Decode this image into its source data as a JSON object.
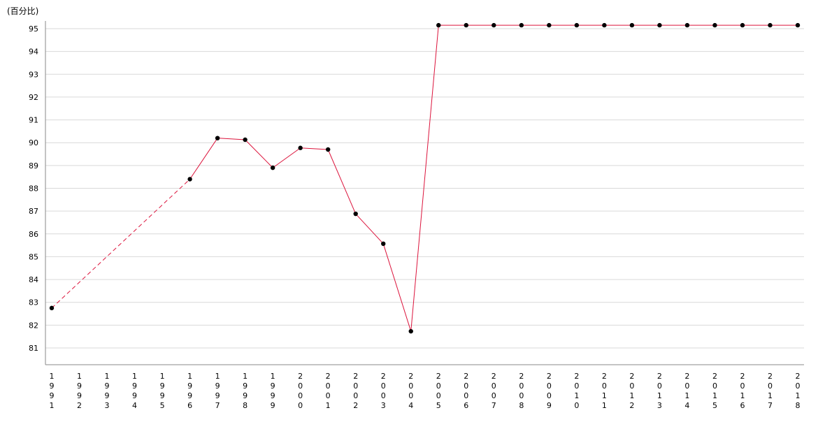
{
  "chart_data": {
    "type": "line",
    "title": "",
    "xlabel": "",
    "ylabel": "(百分比)",
    "ylim": [
      80.25,
      95.35
    ],
    "yticks": [
      81,
      82,
      83,
      84,
      85,
      86,
      87,
      88,
      89,
      90,
      91,
      92,
      93,
      94,
      95
    ],
    "grid": true,
    "legend": "none",
    "colors": {
      "line": "#dc143c",
      "marker": "#000000",
      "grid": "#d9d9d9",
      "axis": "#888888"
    },
    "x": [
      "1991",
      "1992",
      "1993",
      "1994",
      "1995",
      "1996",
      "1997",
      "1998",
      "1999",
      "2000",
      "2001",
      "2002",
      "2003",
      "2004",
      "2005",
      "2006",
      "2007",
      "2008",
      "2009",
      "2010",
      "2011",
      "2012",
      "2013",
      "2014",
      "2015",
      "2016",
      "2017",
      "2018"
    ],
    "series": [
      {
        "values": [
          82.75,
          null,
          null,
          null,
          null,
          88.4,
          90.2,
          90.13,
          88.9,
          89.77,
          89.7,
          86.88,
          85.57,
          81.73,
          95.15,
          95.15,
          95.15,
          95.15,
          95.15,
          95.15,
          95.15,
          95.15,
          95.15,
          95.15,
          95.15,
          95.15,
          95.15,
          95.15
        ]
      }
    ]
  }
}
